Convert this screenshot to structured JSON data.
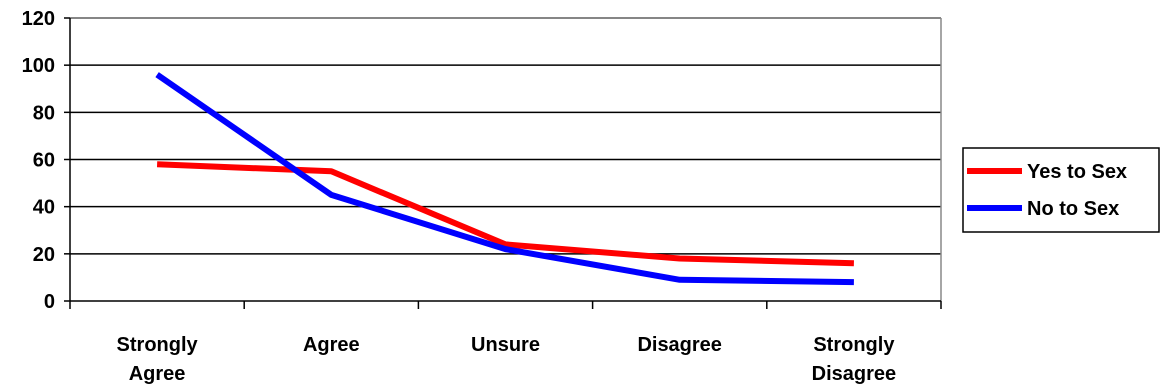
{
  "chart_data": {
    "type": "line",
    "categories": [
      "Strongly Agree",
      "Agree",
      "Unsure",
      "Disagree",
      "Strongly Disagree"
    ],
    "category_lines": [
      [
        "Strongly",
        "Agree"
      ],
      [
        "Agree"
      ],
      [
        "Unsure"
      ],
      [
        "Disagree"
      ],
      [
        "Strongly",
        "Disagree"
      ]
    ],
    "series": [
      {
        "name": "Yes to Sex",
        "color": "#ff0000",
        "values": [
          58,
          55,
          24,
          18,
          16
        ]
      },
      {
        "name": "No to Sex",
        "color": "#0000ff",
        "values": [
          96,
          45,
          22,
          9,
          8
        ]
      }
    ],
    "ylim": [
      0,
      120
    ],
    "yticks": [
      0,
      20,
      40,
      60,
      80,
      100,
      120
    ],
    "grid": true,
    "legend_position": "right",
    "title": "",
    "xlabel": "",
    "ylabel": ""
  }
}
